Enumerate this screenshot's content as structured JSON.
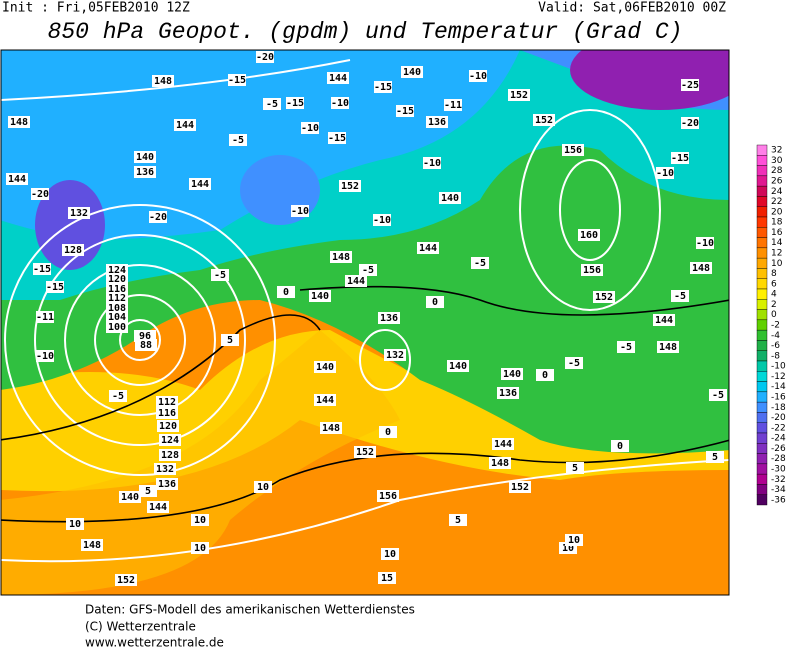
{
  "header": {
    "init": "Init : Fri,05FEB2010 12Z",
    "valid": "Valid: Sat,06FEB2010 00Z",
    "title": "850 hPa Geopot. (gpdm) und Temperatur (Grad C)"
  },
  "map": {
    "height_labels": [
      148,
      148,
      144,
      140,
      136,
      144,
      144,
      132,
      128,
      124,
      120,
      116,
      112,
      108,
      104,
      100,
      96,
      88,
      112,
      116,
      120,
      124,
      128,
      132,
      136,
      140,
      144,
      148,
      152,
      144,
      140,
      136,
      152,
      152,
      156,
      160,
      156,
      152,
      144,
      148,
      148,
      152,
      148,
      140,
      144,
      144,
      140,
      136,
      132,
      140,
      144,
      148,
      152,
      156,
      140,
      140,
      136,
      144,
      148,
      152
    ],
    "temperature_labels": [
      -20,
      -15,
      -5,
      -15,
      -10,
      -15,
      -15,
      -11,
      -10,
      -10,
      -15,
      -5,
      -20,
      -20,
      -15,
      -15,
      -11,
      -10,
      -5,
      -5,
      0,
      5,
      -10,
      -10,
      -10,
      -5,
      -5,
      -5,
      -5,
      0,
      -20,
      -15,
      -10,
      -10,
      -5,
      -5,
      5,
      0,
      -25,
      5,
      5,
      10,
      10,
      10,
      10,
      10,
      10,
      5,
      15,
      0,
      0,
      10
    ]
  },
  "colorbar": {
    "ticks": [
      32,
      30,
      28,
      26,
      24,
      22,
      20,
      18,
      16,
      14,
      12,
      10,
      8,
      6,
      4,
      2,
      0,
      -2,
      -4,
      -6,
      -8,
      -10,
      -12,
      -14,
      -16,
      -18,
      -20,
      -22,
      -24,
      -26,
      -28,
      -30,
      -32,
      -34,
      -36
    ],
    "colors": [
      "#ff80e8",
      "#ff50d8",
      "#f030b8",
      "#e01890",
      "#d00858",
      "#e00828",
      "#f02000",
      "#ff3800",
      "#ff5800",
      "#ff7400",
      "#ff9000",
      "#ffa800",
      "#ffc000",
      "#ffd800",
      "#fff000",
      "#d8f000",
      "#a0e000",
      "#60d000",
      "#30c030",
      "#20b048",
      "#10b068",
      "#00c8a8",
      "#00d8d8",
      "#00c8f0",
      "#20b0ff",
      "#4090ff",
      "#5070f0",
      "#6050e0",
      "#7040d0",
      "#8030c0",
      "#9020b0",
      "#a010a0",
      "#b00090",
      "#800080",
      "#500060"
    ]
  },
  "footer": {
    "line1": "Daten: GFS-Modell des amerikanischen Wetterdienstes",
    "line2": "(C) Wetterzentrale",
    "line3": "www.wetterzentrale.de"
  }
}
